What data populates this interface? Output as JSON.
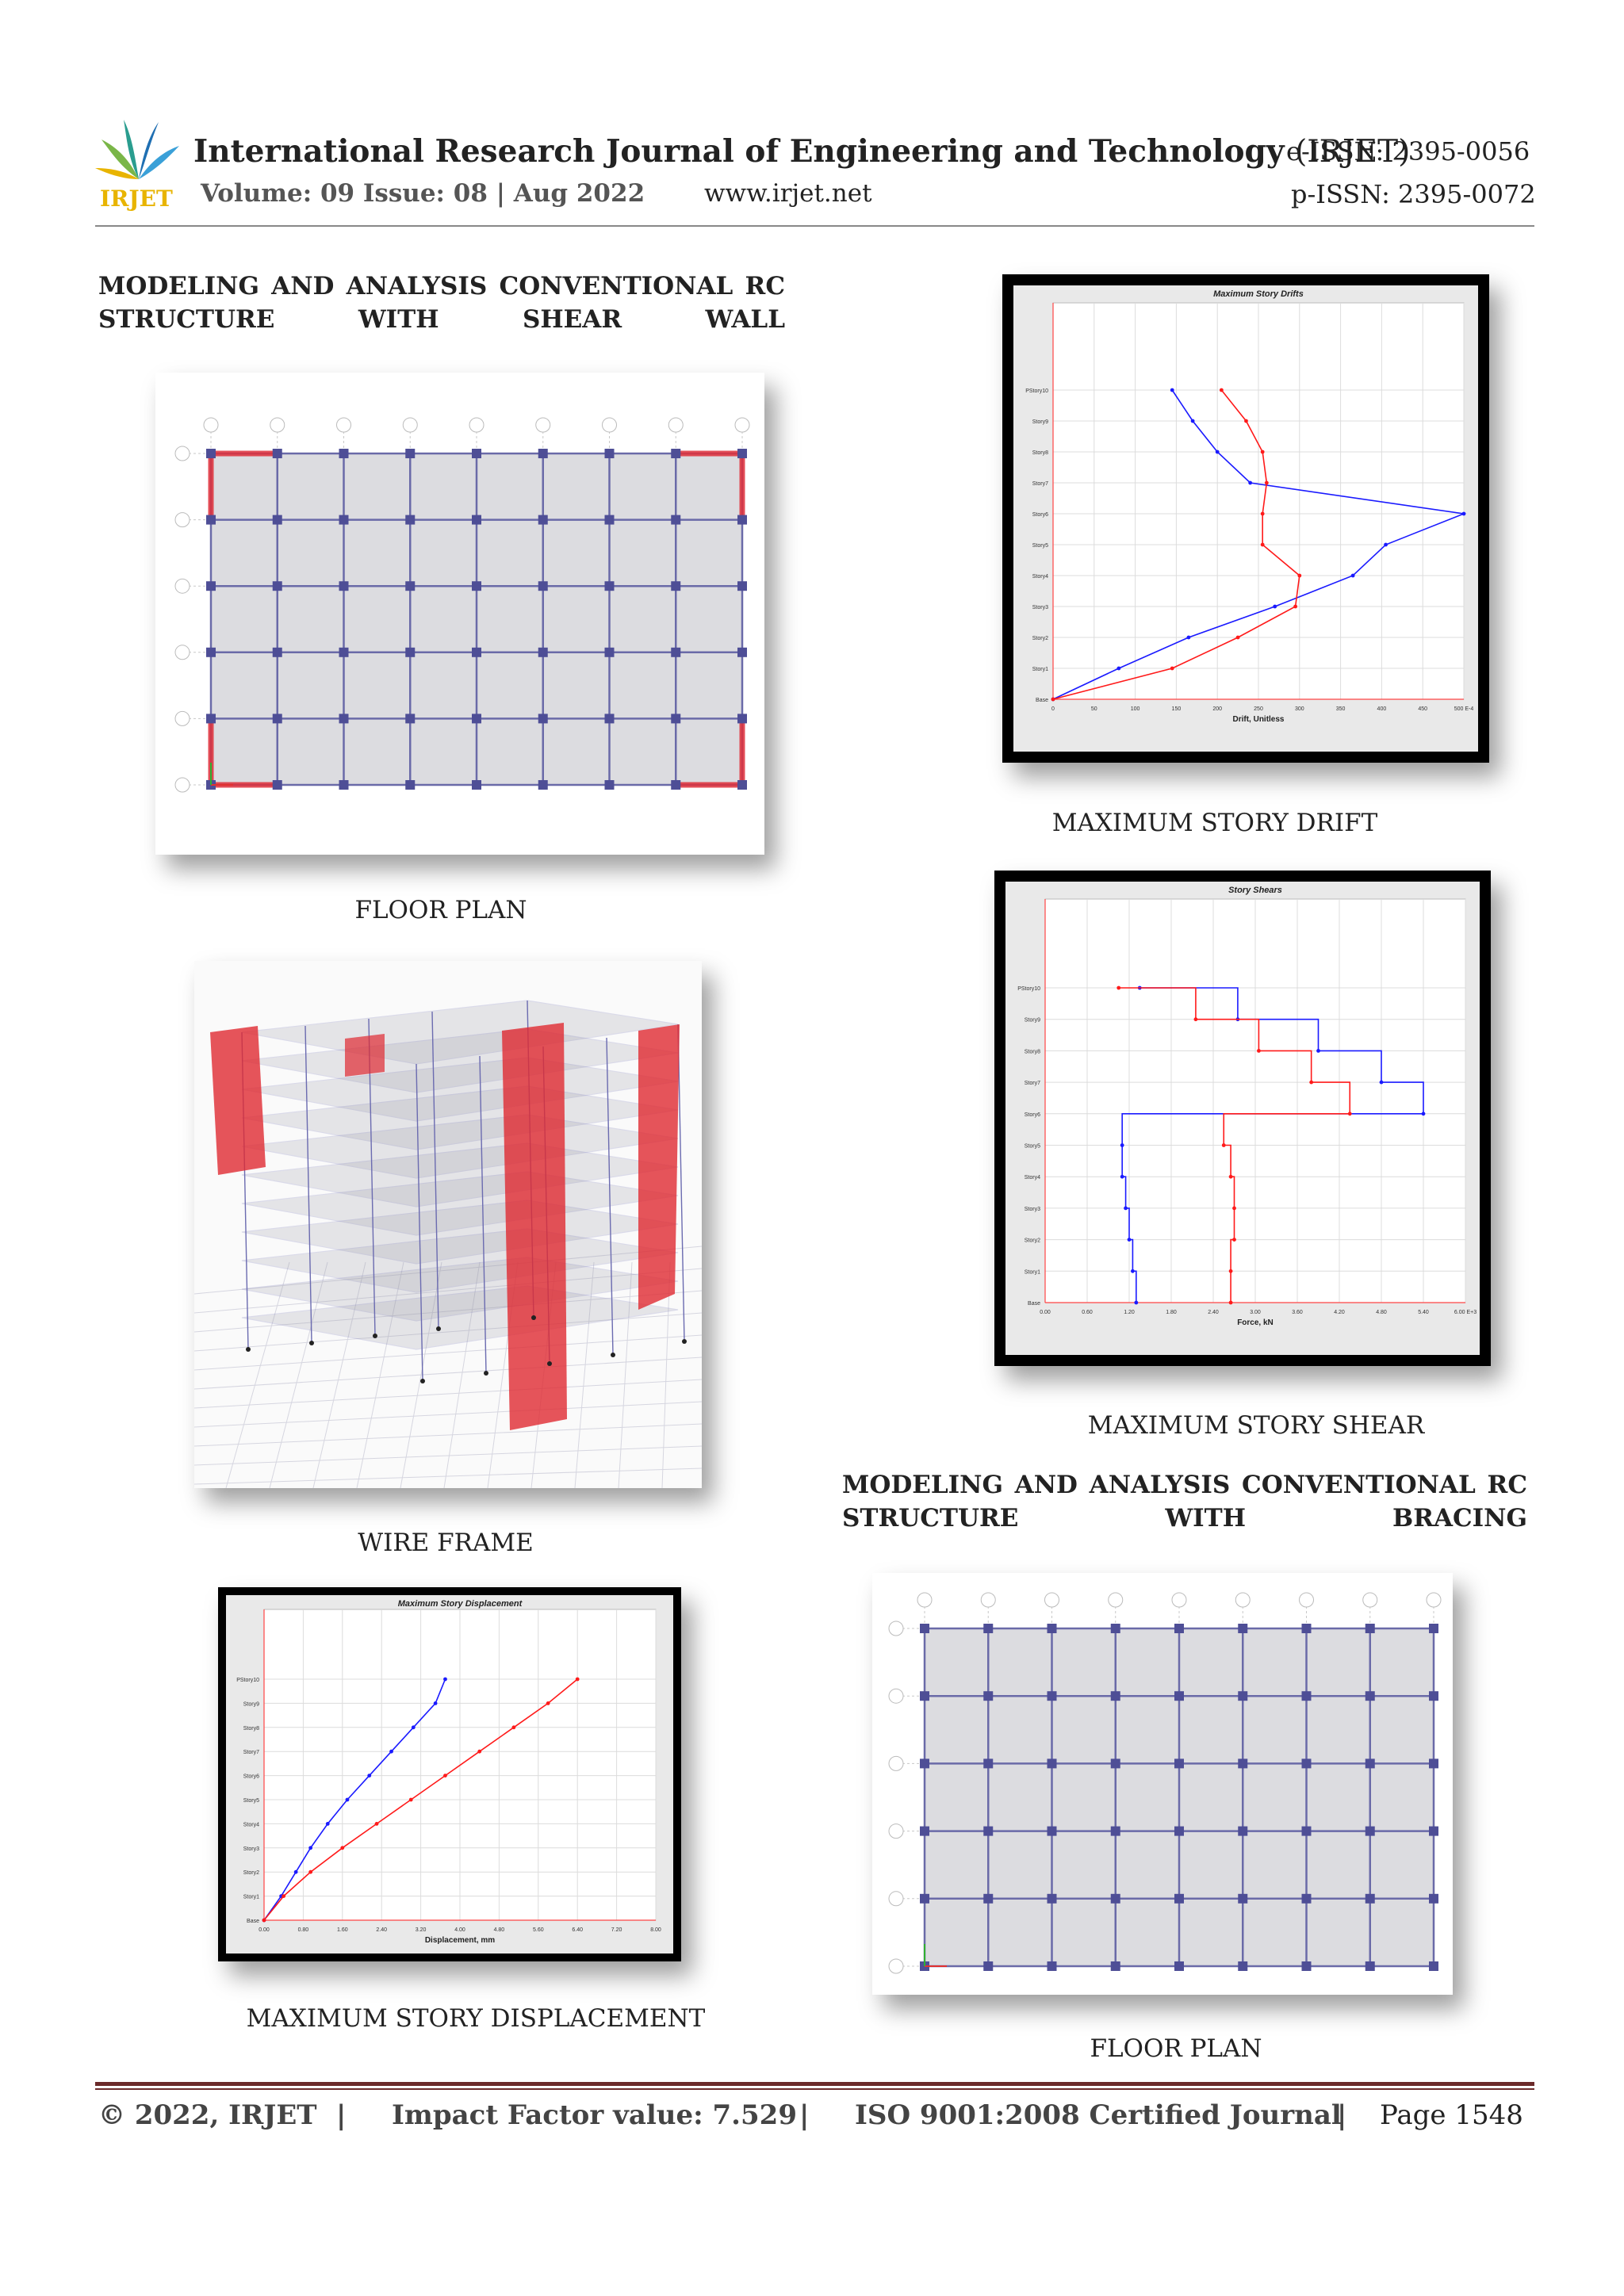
{
  "header": {
    "journal_bold": "International Research Journal of Engineering and Technology",
    "journal_abbr": "(IRJET)",
    "logo_text": "IRJET",
    "volume": "Volume: 09 Issue: 08 | Aug 2022",
    "website": "www.irjet.net",
    "eissn": "e-ISSN: 2395-0056",
    "pissn": "p-ISSN: 2395-0072",
    "colors": {
      "logo_teal": "#2a9d8f",
      "logo_yellow": "#e8b400",
      "logo_blue": "#1f6fb2"
    }
  },
  "sections": {
    "shear_wall_heading": "MODELING AND ANALYSIS CONVENTIONAL RC STRUCTURE WITH SHEAR WALL",
    "bracing_heading": "MODELING AND ANALYSIS CONVENTIONAL RC STRUCTURE WITH BRACING"
  },
  "captions": {
    "floor_plan_1": "FLOOR PLAN",
    "wire_frame": "WIRE FRAME",
    "max_disp": "MAXIMUM STORY DISPLACEMENT",
    "max_drift": "MAXIMUM STORY DRIFT",
    "max_shear": "MAXIMUM STORY SHEAR",
    "floor_plan_2": "FLOOR PLAN"
  },
  "footer": {
    "copyright": "© 2022, IRJET",
    "impact": "Impact Factor value: 7.529",
    "iso": "ISO 9001:2008 Certified Journal",
    "page": "Page 1548",
    "sep": "|"
  },
  "chart_data": [
    {
      "type": "line",
      "title": "Maximum Story Drifts",
      "xlabel": "Drift, Unitless",
      "ylabel": "",
      "x_unit_suffix": "E-4",
      "xlim": [
        0,
        500
      ],
      "xticks": [
        "0",
        "50",
        "100",
        "150",
        "200",
        "250",
        "300",
        "350",
        "400",
        "450",
        "500 E-4"
      ],
      "categories": [
        "Base",
        "Story1",
        "Story2",
        "Story3",
        "Story4",
        "Story5",
        "Story6",
        "Story7",
        "Story8",
        "Story9",
        "PStory10"
      ],
      "series": [
        {
          "color": "#1a1aff",
          "values": [
            0,
            80,
            165,
            270,
            365,
            405,
            500,
            240,
            200,
            170,
            145
          ]
        },
        {
          "color": "#ff1a1a",
          "values": [
            0,
            145,
            225,
            295,
            300,
            255,
            255,
            260,
            255,
            235,
            205
          ]
        }
      ],
      "grid": true
    },
    {
      "type": "line",
      "title": "Story Shears",
      "xlabel": "Force, kN",
      "ylabel": "",
      "xlim": [
        0,
        6
      ],
      "xticks": [
        "0.00",
        "0.60",
        "1.20",
        "1.80",
        "2.40",
        "3.00",
        "3.60",
        "4.20",
        "4.80",
        "5.40",
        "6.00 E+3"
      ],
      "categories": [
        "Base",
        "Story1",
        "Story2",
        "Story3",
        "Story4",
        "Story5",
        "Story6",
        "Story7",
        "Story8",
        "Story9",
        "PStory10"
      ],
      "series": [
        {
          "color": "#1a1aff",
          "values": [
            1.3,
            1.25,
            1.2,
            1.15,
            1.1,
            1.1,
            5.4,
            4.8,
            3.9,
            2.75,
            1.35
          ]
        },
        {
          "color": "#ff1a1a",
          "values": [
            2.65,
            2.65,
            2.7,
            2.7,
            2.65,
            2.55,
            4.35,
            3.8,
            3.05,
            2.15,
            1.05
          ]
        }
      ],
      "grid": true
    },
    {
      "type": "line",
      "title": "Maximum Story Displacement",
      "xlabel": "Displacement, mm",
      "ylabel": "",
      "xlim": [
        0,
        8
      ],
      "xticks": [
        "0.00",
        "0.80",
        "1.60",
        "2.40",
        "3.20",
        "4.00",
        "4.80",
        "5.60",
        "6.40",
        "7.20",
        "8.00"
      ],
      "categories": [
        "Base",
        "Story1",
        "Story2",
        "Story3",
        "Story4",
        "Story5",
        "Story6",
        "Story7",
        "Story8",
        "Story9",
        "PStory10"
      ],
      "series": [
        {
          "color": "#1a1aff",
          "values": [
            0,
            0.35,
            0.65,
            0.95,
            1.3,
            1.7,
            2.15,
            2.6,
            3.05,
            3.5,
            3.7
          ]
        },
        {
          "color": "#ff1a1a",
          "values": [
            0,
            0.4,
            0.95,
            1.6,
            2.3,
            3.0,
            3.7,
            4.4,
            5.1,
            5.8,
            6.4
          ]
        }
      ],
      "grid": true
    }
  ]
}
